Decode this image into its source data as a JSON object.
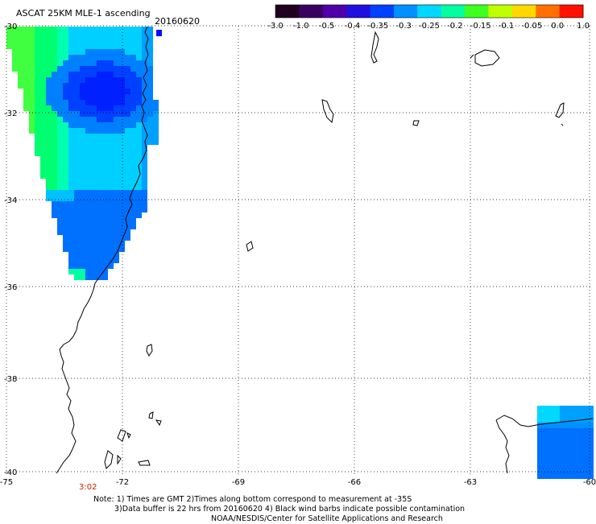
{
  "title": "ASCAT 25KM MLE-1 ascending",
  "date": "20160620",
  "colorbar": {
    "labels": [
      "-3.0",
      "-1.0",
      "-0.5",
      "-0.4",
      "-0.35",
      "-0.3",
      "-0.25",
      "-0.2",
      "-0.15",
      "-0.1",
      "-0.05",
      "0.0",
      "1.0"
    ],
    "colors": [
      "#200020",
      "#3a0060",
      "#5000a8",
      "#2010e0",
      "#0040ff",
      "#0090ff",
      "#00d8ff",
      "#00ffa0",
      "#40ff20",
      "#c0ff00",
      "#ffd800",
      "#ff7000",
      "#ff1000"
    ]
  },
  "lat_labels": [
    "-30",
    "-32",
    "-34",
    "-36",
    "-38",
    "-40"
  ],
  "lon_labels": [
    "-75",
    "-72",
    "-69",
    "-66",
    "-63",
    "-60"
  ],
  "time_label": "3:02",
  "notes": {
    "line1": "Note: 1) Times are GMT 2)Times along bottom correspond to measurement at -35S",
    "line2": "3)Data buffer is 22 hrs from 20160620 4) Black wind barbs indicate possible contamination",
    "line3": "NOAA/NESDIS/Center for Satellite Applications and Research"
  }
}
